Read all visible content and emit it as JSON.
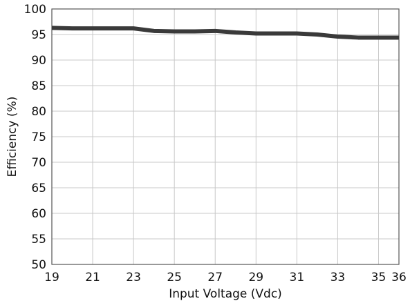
{
  "chart_data": {
    "type": "line",
    "title": "",
    "xlabel": "Input Voltage (Vdc)",
    "ylabel": "Efficiency (%)",
    "xlim": [
      19,
      36
    ],
    "ylim": [
      50,
      100
    ],
    "x_ticks": [
      19,
      21,
      23,
      25,
      27,
      29,
      31,
      33,
      35,
      36
    ],
    "y_ticks": [
      50,
      55,
      60,
      65,
      70,
      75,
      80,
      85,
      90,
      95,
      100
    ],
    "grid": true,
    "legend": "none",
    "series": [
      {
        "color": "#3a3a3a",
        "x": [
          19,
          20,
          21,
          22,
          23,
          24,
          25,
          26,
          27,
          28,
          29,
          30,
          31,
          32,
          33,
          34,
          35,
          36
        ],
        "y": [
          96.3,
          96.2,
          96.2,
          96.2,
          96.2,
          95.7,
          95.6,
          95.6,
          95.7,
          95.4,
          95.2,
          95.2,
          95.2,
          95.0,
          94.6,
          94.4,
          94.4,
          94.4
        ]
      }
    ]
  }
}
